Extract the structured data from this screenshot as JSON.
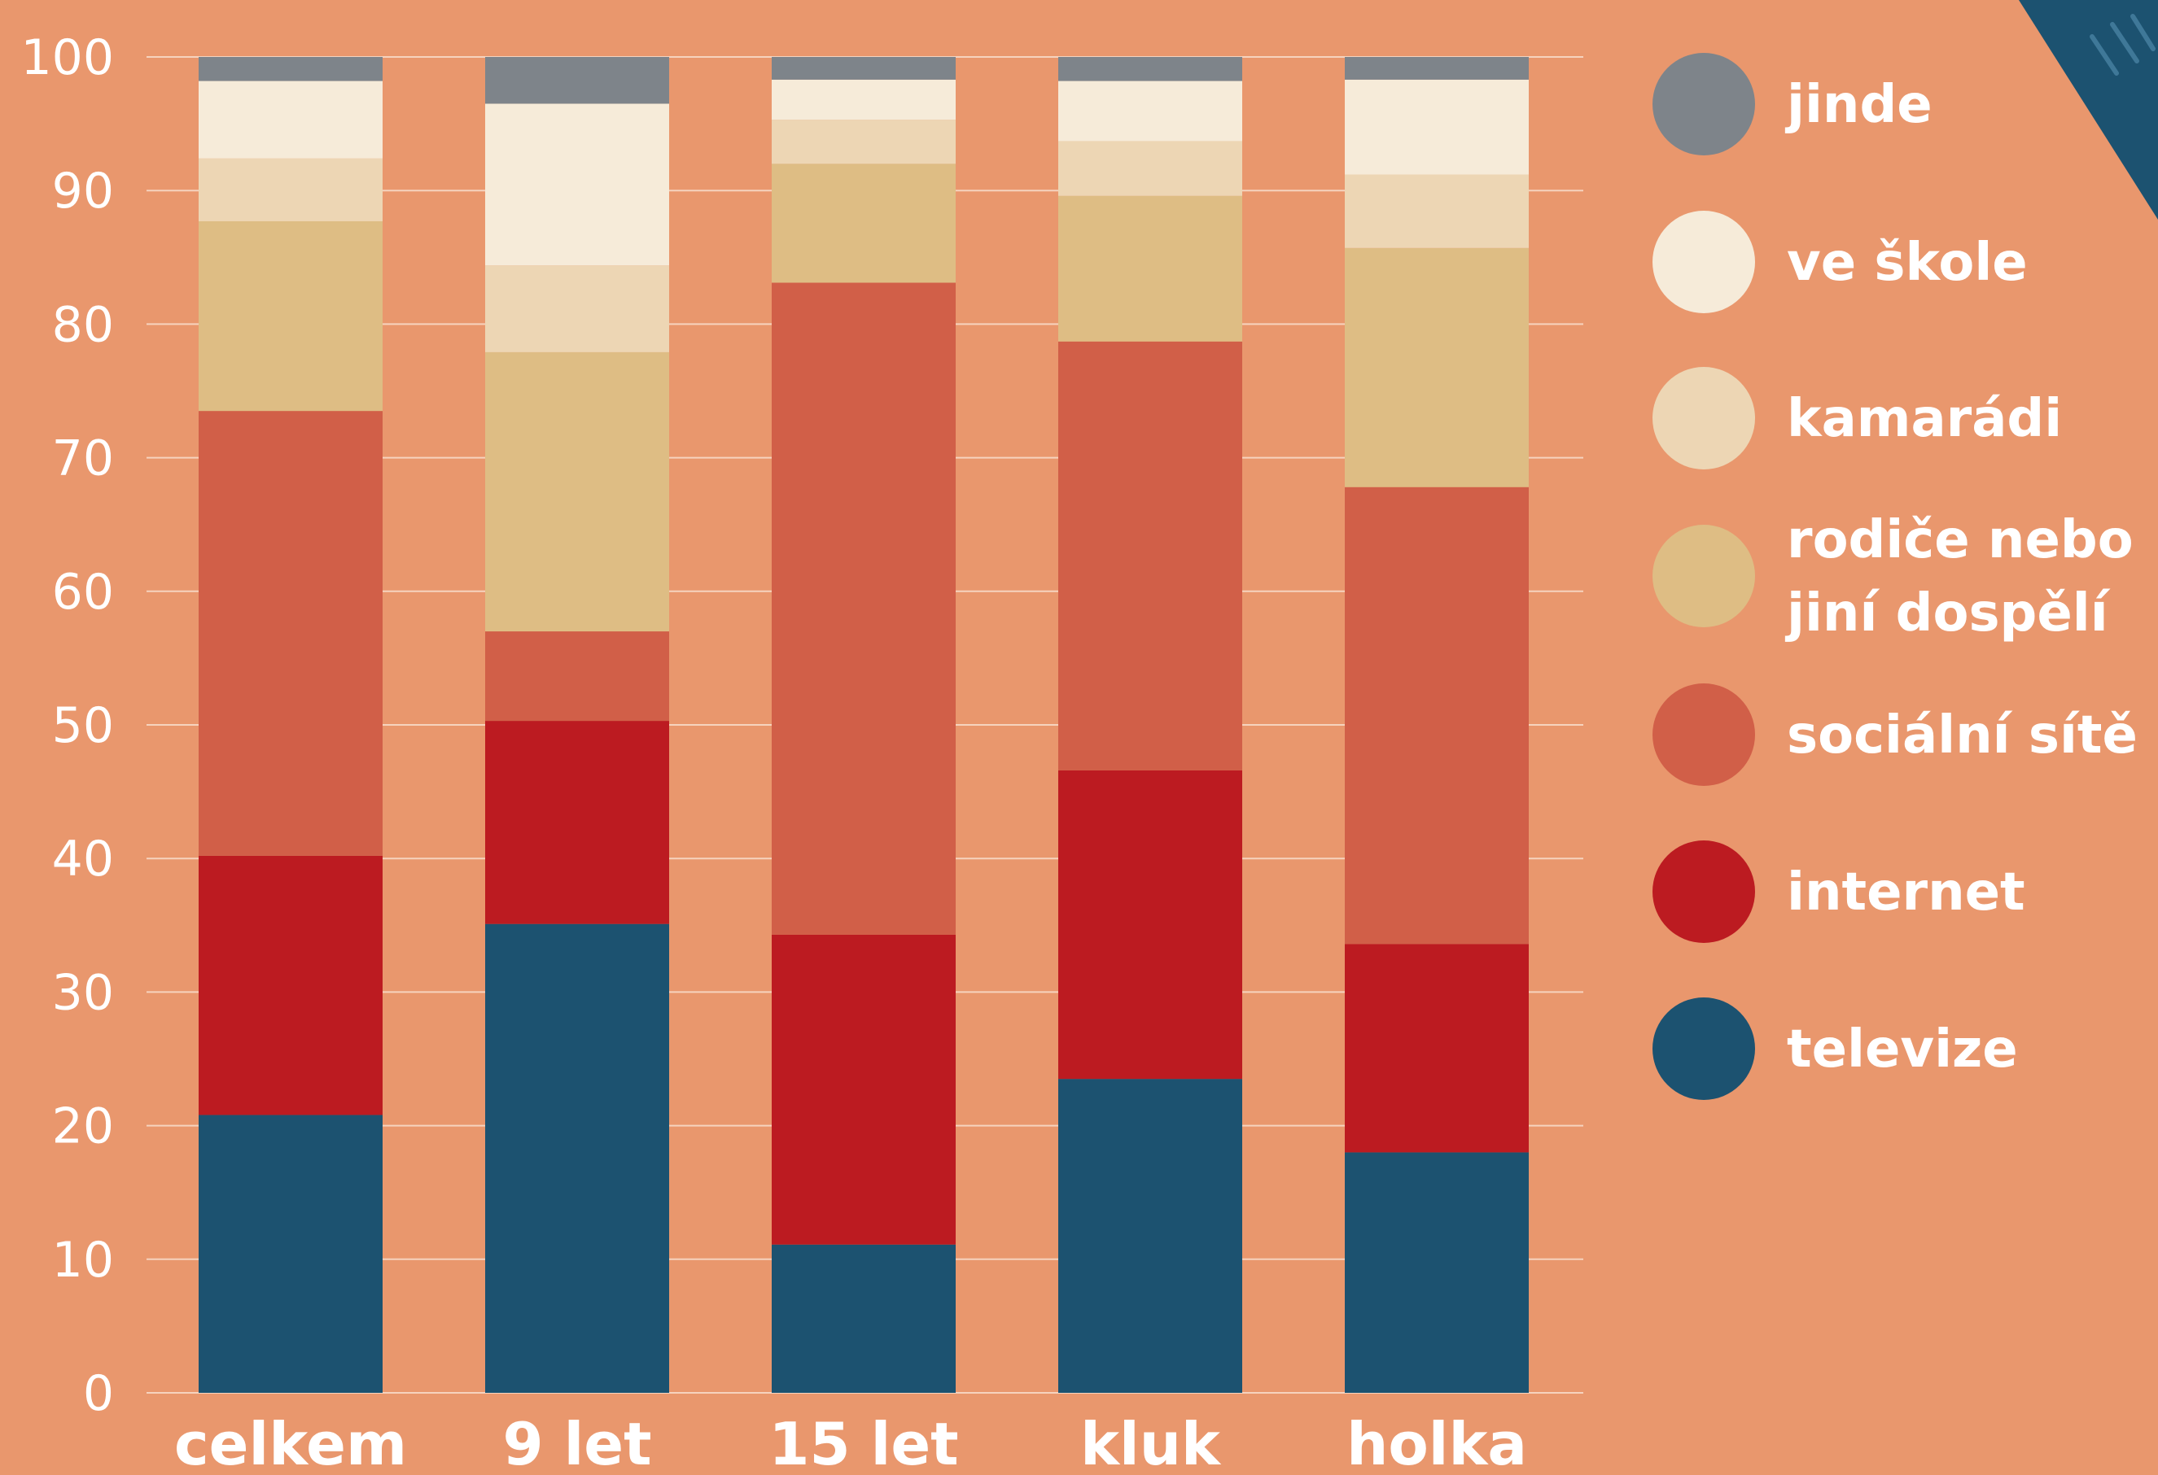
{
  "chart_data": {
    "type": "bar",
    "stacked": true,
    "categories": [
      "celkem",
      "9 let",
      "15 let",
      "kluk",
      "holka"
    ],
    "series": [
      {
        "name": "televize",
        "color": "#1C5270",
        "values": [
          20.8,
          35.1,
          11.1,
          23.5,
          18.0
        ]
      },
      {
        "name": "internet",
        "color": "#BC1B21",
        "values": [
          19.4,
          15.2,
          23.2,
          23.1,
          15.6
        ]
      },
      {
        "name": "sociální sítě",
        "color": "#D15F48",
        "values": [
          33.3,
          6.7,
          48.8,
          32.1,
          34.2
        ]
      },
      {
        "name": "rodiče nebo jiní dospělí",
        "color": "#DEBD84",
        "values": [
          14.2,
          20.9,
          8.9,
          10.9,
          17.9
        ]
      },
      {
        "name": "kamarádi",
        "color": "#EDD6B4",
        "values": [
          4.7,
          6.5,
          3.3,
          4.1,
          5.5
        ]
      },
      {
        "name": "ve škole",
        "color": "#F6EBD9",
        "values": [
          5.8,
          12.1,
          3.0,
          4.5,
          7.1
        ]
      },
      {
        "name": "jinde",
        "color": "#7E848A",
        "values": [
          1.8,
          3.5,
          1.7,
          1.8,
          1.7
        ]
      }
    ],
    "legend_order": [
      "jinde",
      "ve škole",
      "kamarádi",
      "rodiče nebo jiní dospělí",
      "sociální sítě",
      "internet",
      "televize"
    ],
    "legend_lines": {
      "rodiče nebo jiní dospělí": [
        "rodiče nebo",
        "jiní dospělí"
      ]
    },
    "yticks": [
      "0",
      "10",
      "20",
      "30",
      "40",
      "50",
      "60",
      "70",
      "80",
      "90",
      "100"
    ],
    "ylim": [
      0,
      100
    ],
    "grid": true,
    "legend_position": "right",
    "title": "",
    "xlabel": "",
    "ylabel": ""
  },
  "colors": {
    "background": "#E9976D",
    "gridline": "#F6D3BE",
    "text": "#FFFFFF",
    "corner_accent": "#1C5270"
  }
}
